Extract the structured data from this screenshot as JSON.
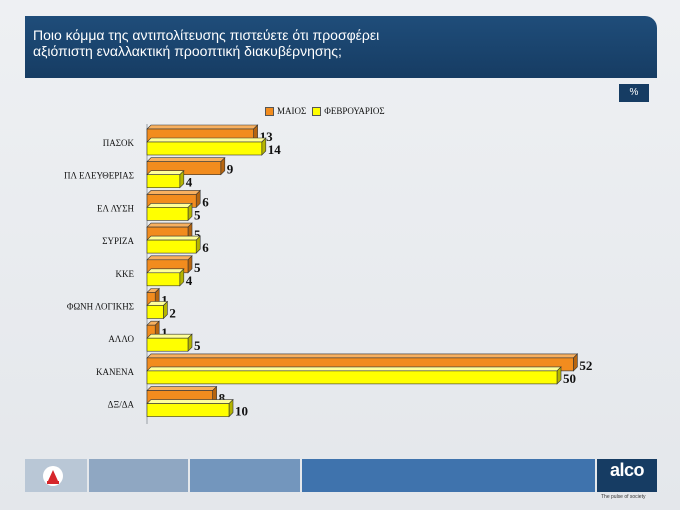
{
  "header": {
    "title_line1": "Ποιο κόμμα της αντιπολίτευσης πιστεύετε ότι προσφέρει",
    "title_line2": "αξιόπιστη εναλλακτική προοπτική διακυβέρνησης;"
  },
  "unit_badge": "%",
  "legend": {
    "series1": "ΜΑΙΟΣ",
    "series2": "ΦΕΒΡΟΥΑΡΙΟΣ"
  },
  "colors": {
    "series1": "#f28c1e",
    "series2": "#ffff00",
    "header": "#1f4d7a"
  },
  "chart_data": {
    "type": "bar",
    "orientation": "horizontal",
    "categories": [
      "ΠΑΣΟΚ",
      "ΠΛ ΕΛΕΥΘΕΡΙΑΣ",
      "ΕΛ ΛΥΣΗ",
      "ΣΥΡΙΖΑ",
      "ΚΚΕ",
      "ΦΩΝΗ ΛΟΓΙΚΗΣ",
      "ΑΛΛΟ",
      "ΚΑΝΕΝΑ",
      "ΔΞ/ΔΑ"
    ],
    "series": [
      {
        "name": "ΜΑΙΟΣ",
        "values": [
          13,
          9,
          6,
          5,
          5,
          1,
          1,
          52,
          8
        ]
      },
      {
        "name": "ΦΕΒΡΟΥΑΡΙΟΣ",
        "values": [
          14,
          4,
          5,
          6,
          4,
          2,
          5,
          50,
          10
        ]
      }
    ],
    "xlim": [
      0,
      52
    ],
    "legend_position": "top",
    "grid": false,
    "title": "",
    "xlabel": "",
    "ylabel": ""
  },
  "footer": {
    "brand": "alco",
    "tagline": "The pulse of society"
  }
}
